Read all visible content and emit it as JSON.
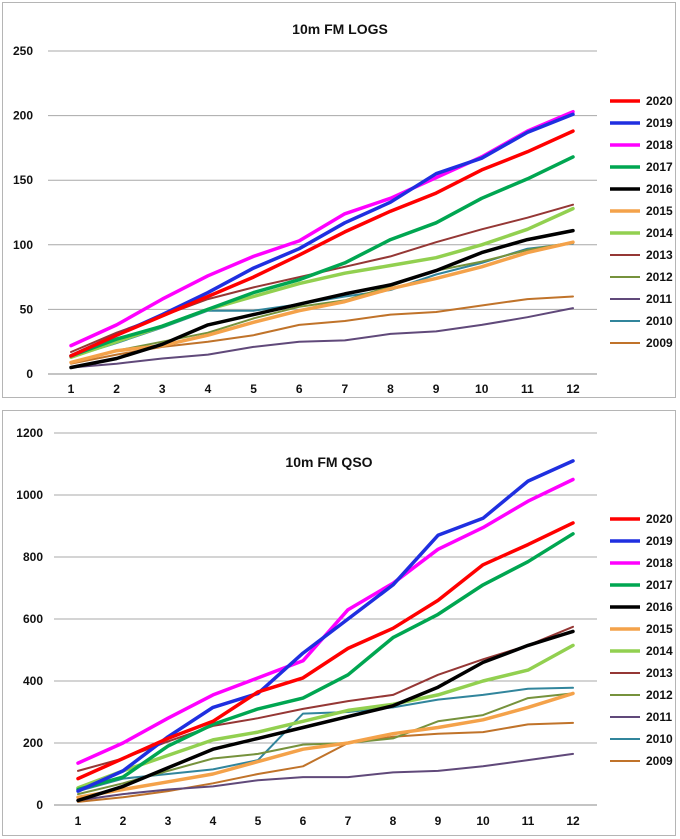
{
  "chart_data": [
    {
      "type": "line",
      "title": "10m FM LOGS",
      "xlabel": "",
      "ylabel": "",
      "x": [
        1,
        2,
        3,
        4,
        5,
        6,
        7,
        8,
        9,
        10,
        11,
        12
      ],
      "ylim": [
        0,
        250
      ],
      "yticks": [
        0,
        50,
        100,
        150,
        200,
        250
      ],
      "grid": true,
      "legend_position": "right",
      "series": [
        {
          "name": "2020",
          "color": "#ff0000",
          "width": "thick",
          "values": [
            14,
            30,
            45,
            60,
            75,
            92,
            110,
            126,
            140,
            158,
            172,
            188
          ]
        },
        {
          "name": "2019",
          "color": "#1f2fe0",
          "width": "thick",
          "values": [
            14,
            30,
            46,
            63,
            82,
            97,
            117,
            133,
            155,
            167,
            187,
            201
          ]
        },
        {
          "name": "2018",
          "color": "#ff00ff",
          "width": "thick",
          "values": [
            22,
            38,
            58,
            76,
            91,
            103,
            124,
            136,
            152,
            168,
            188,
            203
          ]
        },
        {
          "name": "2017",
          "color": "#00a651",
          "width": "thick",
          "values": [
            14,
            27,
            37,
            50,
            63,
            73,
            86,
            104,
            117,
            136,
            151,
            168
          ]
        },
        {
          "name": "2016",
          "color": "#000000",
          "width": "thick",
          "values": [
            5,
            12,
            23,
            38,
            46,
            54,
            62,
            69,
            80,
            94,
            104,
            111
          ]
        },
        {
          "name": "2015",
          "color": "#f4a24a",
          "width": "thick",
          "values": [
            9,
            18,
            22,
            30,
            40,
            49,
            56,
            66,
            74,
            83,
            94,
            102
          ]
        },
        {
          "name": "2014",
          "color": "#92d050",
          "width": "thick",
          "values": [
            13,
            25,
            37,
            50,
            60,
            70,
            78,
            84,
            90,
            100,
            112,
            128
          ]
        },
        {
          "name": "2013",
          "color": "#953735",
          "width": "thin",
          "values": [
            17,
            32,
            45,
            58,
            67,
            75,
            83,
            91,
            102,
            112,
            121,
            131
          ]
        },
        {
          "name": "2012",
          "color": "#76923c",
          "width": "thin",
          "values": [
            9,
            18,
            25,
            32,
            43,
            52,
            57,
            68,
            80,
            87,
            96,
            102
          ]
        },
        {
          "name": "2011",
          "color": "#60497a",
          "width": "thin",
          "values": [
            5,
            8,
            12,
            15,
            21,
            25,
            26,
            31,
            33,
            38,
            44,
            51
          ]
        },
        {
          "name": "2010",
          "color": "#31859c",
          "width": "thin",
          "values": [
            13,
            24,
            36,
            49,
            49,
            54,
            60,
            65,
            77,
            86,
            97,
            101
          ]
        },
        {
          "name": "2009",
          "color": "#c0732a",
          "width": "thin",
          "values": [
            8,
            15,
            21,
            25,
            30,
            38,
            41,
            46,
            48,
            53,
            58,
            60
          ]
        }
      ]
    },
    {
      "type": "line",
      "title": "10m FM QSO",
      "xlabel": "",
      "ylabel": "",
      "x": [
        1,
        2,
        3,
        4,
        5,
        6,
        7,
        8,
        9,
        10,
        11,
        12
      ],
      "ylim": [
        0,
        1200
      ],
      "yticks": [
        0,
        200,
        400,
        600,
        800,
        1000,
        1200
      ],
      "grid": true,
      "legend_position": "right",
      "series": [
        {
          "name": "2020",
          "color": "#ff0000",
          "width": "thick",
          "values": [
            85,
            150,
            215,
            270,
            365,
            410,
            505,
            570,
            660,
            775,
            840,
            910
          ]
        },
        {
          "name": "2019",
          "color": "#1f2fe0",
          "width": "thick",
          "values": [
            45,
            110,
            220,
            315,
            360,
            490,
            600,
            710,
            870,
            925,
            1045,
            1110
          ]
        },
        {
          "name": "2018",
          "color": "#ff00ff",
          "width": "thick",
          "values": [
            135,
            200,
            280,
            355,
            410,
            465,
            630,
            715,
            825,
            895,
            980,
            1050
          ]
        },
        {
          "name": "2017",
          "color": "#00a651",
          "width": "thick",
          "values": [
            50,
            90,
            190,
            260,
            310,
            345,
            420,
            540,
            615,
            710,
            785,
            875
          ]
        },
        {
          "name": "2016",
          "color": "#000000",
          "width": "thick",
          "values": [
            15,
            60,
            120,
            180,
            215,
            250,
            285,
            320,
            380,
            460,
            515,
            560
          ]
        },
        {
          "name": "2015",
          "color": "#f4a24a",
          "width": "thick",
          "values": [
            25,
            50,
            75,
            100,
            140,
            180,
            200,
            230,
            250,
            275,
            315,
            360
          ]
        },
        {
          "name": "2014",
          "color": "#92d050",
          "width": "thick",
          "values": [
            55,
            110,
            160,
            210,
            235,
            270,
            305,
            325,
            355,
            400,
            435,
            515
          ]
        },
        {
          "name": "2013",
          "color": "#953735",
          "width": "thin",
          "values": [
            110,
            150,
            205,
            255,
            280,
            310,
            335,
            355,
            420,
            470,
            515,
            575
          ]
        },
        {
          "name": "2012",
          "color": "#76923c",
          "width": "thin",
          "values": [
            35,
            70,
            110,
            150,
            165,
            195,
            200,
            215,
            270,
            290,
            345,
            360
          ]
        },
        {
          "name": "2011",
          "color": "#60497a",
          "width": "thin",
          "values": [
            15,
            35,
            50,
            60,
            80,
            90,
            90,
            105,
            110,
            125,
            145,
            165
          ]
        },
        {
          "name": "2010",
          "color": "#31859c",
          "width": "thin",
          "values": [
            45,
            85,
            100,
            115,
            145,
            295,
            300,
            315,
            340,
            355,
            375,
            378
          ]
        },
        {
          "name": "2009",
          "color": "#c0732a",
          "width": "thin",
          "values": [
            10,
            25,
            45,
            70,
            100,
            125,
            200,
            220,
            230,
            235,
            260,
            265
          ]
        }
      ]
    }
  ]
}
